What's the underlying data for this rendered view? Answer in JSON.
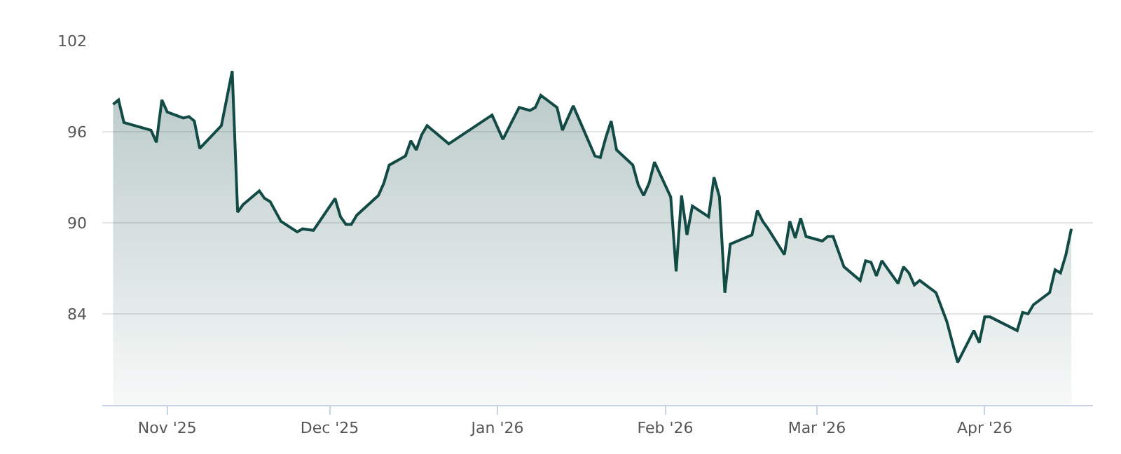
{
  "chart_data": {
    "type": "area",
    "x": [
      "2025-10-22",
      "2025-10-23",
      "2025-10-24",
      "2025-10-29",
      "2025-10-30",
      "2025-10-31",
      "2025-11-01",
      "2025-11-04",
      "2025-11-05",
      "2025-11-06",
      "2025-11-07",
      "2025-11-11",
      "2025-11-13",
      "2025-11-14",
      "2025-11-15",
      "2025-11-18",
      "2025-11-19",
      "2025-11-20",
      "2025-11-22",
      "2025-11-25",
      "2025-11-26",
      "2025-11-28",
      "2025-12-02",
      "2025-12-03",
      "2025-12-04",
      "2025-12-05",
      "2025-12-06",
      "2025-12-10",
      "2025-12-11",
      "2025-12-12",
      "2025-12-15",
      "2025-12-16",
      "2025-12-17",
      "2025-12-18",
      "2025-12-19",
      "2025-12-23",
      "2025-12-31",
      "2026-01-02",
      "2026-01-05",
      "2026-01-07",
      "2026-01-08",
      "2026-01-09",
      "2026-01-12",
      "2026-01-13",
      "2026-01-15",
      "2026-01-19",
      "2026-01-20",
      "2026-01-21",
      "2026-01-22",
      "2026-01-23",
      "2026-01-26",
      "2026-01-27",
      "2026-01-28",
      "2026-01-29",
      "2026-01-30",
      "2026-02-02",
      "2026-02-03",
      "2026-02-04",
      "2026-02-05",
      "2026-02-06",
      "2026-02-09",
      "2026-02-10",
      "2026-02-11",
      "2026-02-12",
      "2026-02-13",
      "2026-02-17",
      "2026-02-18",
      "2026-02-19",
      "2026-02-20",
      "2026-02-23",
      "2026-02-24",
      "2026-02-25",
      "2026-02-26",
      "2026-02-27",
      "2026-03-02",
      "2026-03-03",
      "2026-03-04",
      "2026-03-06",
      "2026-03-09",
      "2026-03-10",
      "2026-03-11",
      "2026-03-12",
      "2026-03-13",
      "2026-03-16",
      "2026-03-17",
      "2026-03-18",
      "2026-03-19",
      "2026-03-20",
      "2026-03-23",
      "2026-03-25",
      "2026-03-27",
      "2026-03-30",
      "2026-03-31",
      "2026-04-01",
      "2026-04-02",
      "2026-04-07",
      "2026-04-08",
      "2026-04-09",
      "2026-04-10",
      "2026-04-13",
      "2026-04-14",
      "2026-04-15",
      "2026-04-16",
      "2026-04-17"
    ],
    "series": [
      {
        "color": "#124a45",
        "values": [
          97.8,
          98.1,
          96.6,
          96.1,
          95.3,
          98.1,
          97.3,
          96.9,
          97.0,
          96.7,
          94.9,
          96.4,
          100.0,
          90.7,
          91.2,
          92.1,
          91.6,
          91.4,
          90.1,
          89.4,
          89.6,
          89.5,
          91.6,
          90.4,
          89.9,
          89.9,
          90.5,
          91.8,
          92.6,
          93.8,
          94.4,
          95.4,
          94.8,
          95.8,
          96.4,
          95.2,
          97.1,
          95.5,
          97.6,
          97.4,
          97.6,
          98.4,
          97.6,
          96.1,
          97.7,
          94.4,
          94.3,
          95.6,
          96.7,
          94.8,
          93.8,
          92.5,
          91.8,
          92.6,
          94.0,
          91.7,
          86.8,
          91.8,
          89.2,
          91.1,
          90.4,
          93.0,
          91.7,
          85.4,
          88.6,
          89.2,
          90.8,
          90.1,
          89.6,
          87.9,
          90.1,
          89.0,
          90.3,
          89.1,
          88.8,
          89.1,
          89.1,
          87.1,
          86.2,
          87.5,
          87.4,
          86.5,
          87.5,
          86.0,
          87.1,
          86.7,
          85.9,
          86.2,
          85.4,
          83.5,
          80.8,
          82.9,
          82.1,
          83.8,
          83.8,
          82.9,
          84.1,
          84.0,
          84.6,
          85.4,
          86.9,
          86.7,
          87.9,
          89.6
        ]
      }
    ],
    "xlim": [
      "2025-10-20",
      "2026-04-21"
    ],
    "xticks": [
      {
        "value": "2025-11-01",
        "label": "Nov '25"
      },
      {
        "value": "2025-12-01",
        "label": "Dec '25"
      },
      {
        "value": "2026-01-01",
        "label": "Jan '26"
      },
      {
        "value": "2026-02-01",
        "label": "Feb '26"
      },
      {
        "value": "2026-03-01",
        "label": "Mar '26"
      },
      {
        "value": "2026-04-01",
        "label": "Apr '26"
      }
    ],
    "ylim": [
      78,
      102
    ],
    "yticks": [
      84,
      90,
      96,
      102
    ],
    "grid": "y",
    "marker": "none",
    "line_style": "solid"
  }
}
